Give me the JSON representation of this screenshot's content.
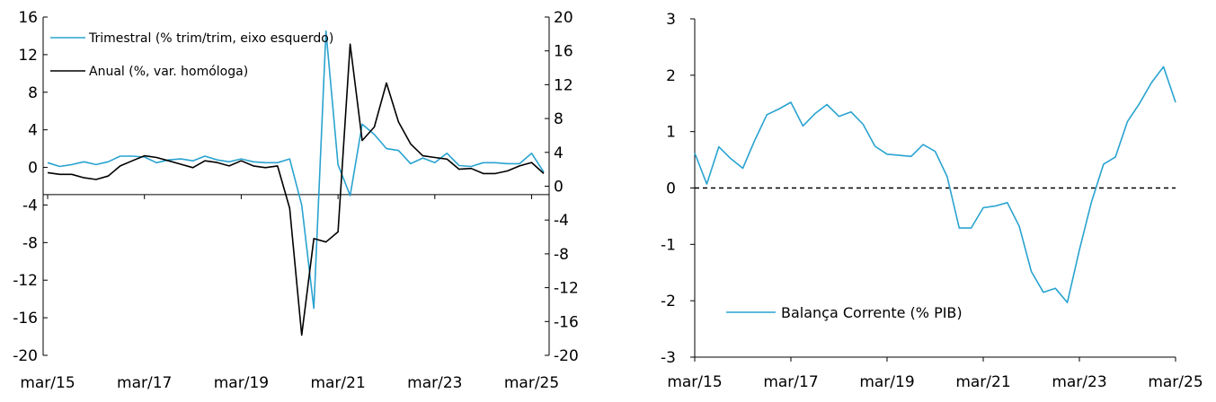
{
  "colors": {
    "quarterly": "#29A3D0",
    "annual": "#000000",
    "balance": "#29A3D0",
    "axis": "#000000"
  },
  "chart_data": [
    {
      "type": "line",
      "title": "",
      "xlabel": "",
      "ylabel": "",
      "x_tick_labels": [
        "mar/15",
        "mar/17",
        "mar/19",
        "mar/21",
        "mar/23",
        "mar/25"
      ],
      "y_left": {
        "ylim": [
          -20,
          16
        ],
        "ticks": [
          "16",
          "12",
          "8",
          "4",
          "0",
          "-4",
          "-8",
          "-12",
          "-16",
          "-20"
        ]
      },
      "y_right": {
        "ylim": [
          -20,
          20
        ],
        "ticks": [
          "20",
          "16",
          "12",
          "8",
          "4",
          "0",
          "-4",
          "-8",
          "-12",
          "-16",
          "-20"
        ]
      },
      "legend_position": "top-left",
      "grid": false,
      "series": [
        {
          "name": "Trimestral (% trim/trim, eixo esquerdo)",
          "axis": "left",
          "values": [
            0.5,
            0.1,
            0.3,
            0.6,
            0.3,
            0.6,
            1.2,
            1.2,
            1.1,
            0.5,
            0.8,
            0.9,
            0.7,
            1.2,
            0.8,
            0.6,
            0.9,
            0.6,
            0.5,
            0.5,
            0.9,
            -4.0,
            -15.0,
            14.5,
            0.3,
            -3.0,
            4.6,
            3.5,
            2.0,
            1.8,
            0.4,
            1.0,
            0.5,
            1.5,
            0.2,
            0.1,
            0.5,
            0.5,
            0.4,
            0.4,
            1.5,
            -0.5
          ]
        },
        {
          "name": "Anual (%, var. homóloga)",
          "axis": "right",
          "values": [
            1.6,
            1.4,
            1.4,
            1.0,
            0.8,
            1.2,
            2.4,
            3.0,
            3.6,
            3.4,
            3.0,
            2.6,
            2.2,
            3.0,
            2.8,
            2.4,
            3.0,
            2.4,
            2.2,
            2.4,
            -2.6,
            -17.6,
            -6.2,
            -6.6,
            -5.4,
            16.8,
            5.4,
            7.0,
            12.2,
            7.6,
            5.0,
            3.6,
            3.4,
            3.2,
            2.0,
            2.1,
            1.5,
            1.5,
            1.8,
            2.4,
            2.8,
            1.5
          ]
        }
      ]
    },
    {
      "type": "line",
      "title": "",
      "xlabel": "",
      "ylabel": "",
      "x_tick_labels": [
        "mar/15",
        "mar/17",
        "mar/19",
        "mar/21",
        "mar/23",
        "mar/25"
      ],
      "ylim": [
        -3,
        3
      ],
      "y_ticks": [
        "3",
        "2",
        "1",
        "0",
        "-1",
        "-2",
        "-3"
      ],
      "reference_line": {
        "y": 0,
        "style": "dashed"
      },
      "legend_position": "bottom-left",
      "grid": false,
      "series": [
        {
          "name": "Balança Corrente (% PIB)",
          "values": [
            0.62,
            0.07,
            0.73,
            0.52,
            0.35,
            0.85,
            1.3,
            1.4,
            1.52,
            1.1,
            1.32,
            1.48,
            1.27,
            1.35,
            1.13,
            0.74,
            0.6,
            0.58,
            0.56,
            0.77,
            0.65,
            0.2,
            -0.71,
            -0.71,
            -0.35,
            -0.32,
            -0.26,
            -0.68,
            -1.48,
            -1.85,
            -1.78,
            -2.03,
            -1.1,
            -0.25,
            0.42,
            0.55,
            1.18,
            1.5,
            1.87,
            2.15,
            1.52
          ]
        }
      ]
    }
  ]
}
